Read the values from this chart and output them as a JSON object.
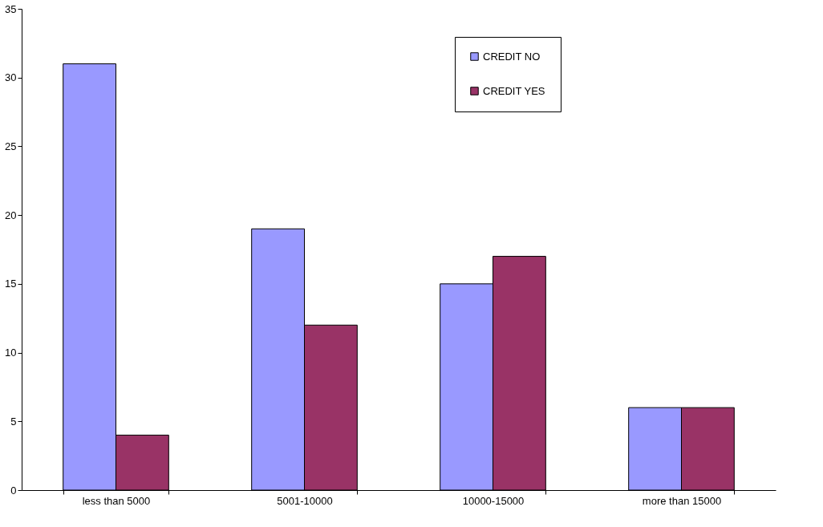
{
  "chart_data": {
    "type": "bar",
    "categories": [
      "less than 5000",
      "5001-10000",
      "10000-15000",
      "more than 15000"
    ],
    "series": [
      {
        "name": "CREDIT NO",
        "color": "#9999ff",
        "values": [
          31,
          19,
          15,
          6
        ]
      },
      {
        "name": "CREDIT YES",
        "color": "#993366",
        "values": [
          4,
          12,
          17,
          6
        ]
      }
    ],
    "ylim": [
      0,
      35
    ],
    "yticks": [
      0,
      5,
      10,
      15,
      20,
      25,
      30,
      35
    ],
    "grid": false,
    "legend": "top right"
  }
}
